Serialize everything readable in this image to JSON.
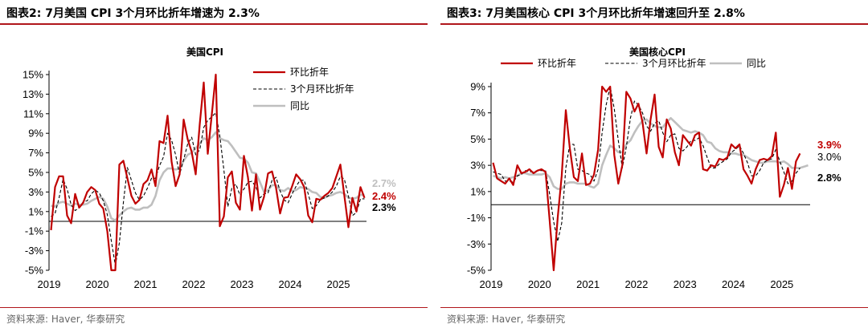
{
  "colors": {
    "red": "#c00000",
    "black": "#000000",
    "gray": "#bfbfbf",
    "rule": "#b0161b"
  },
  "panels": [
    {
      "fig_title": "图表2: 7月美国 CPI 3个月环比折年增速为 2.3%",
      "source": "资料来源: Haver, 华泰研究"
    },
    {
      "fig_title": "图表3: 7月美国核心 CPI 3个月环比折年增速回升至 2.8%",
      "source": "资料来源: Haver, 华泰研究"
    }
  ],
  "chart_data": [
    {
      "type": "line",
      "title": "美国CPI",
      "x_ticks": [
        "2019",
        "2020",
        "2021",
        "2022",
        "2023",
        "2024",
        "2025"
      ],
      "y_ticks": [
        "15%",
        "13%",
        "11%",
        "9%",
        "7%",
        "5%",
        "3%",
        "1%",
        "-1%",
        "-3%",
        "-5%"
      ],
      "ylim": [
        -5,
        15
      ],
      "x_start": "2019-01",
      "legend_position": "top-right",
      "series": [
        {
          "name": "环比折年",
          "color": "#c00000",
          "style": "solid",
          "values": [
            -0.9,
            3.5,
            4.6,
            4.6,
            0.6,
            -0.2,
            2.8,
            1.4,
            1.9,
            3.0,
            3.5,
            3.2,
            1.8,
            1.3,
            -1.0,
            -6.2,
            -6.3,
            5.8,
            6.2,
            4.4,
            2.6,
            1.8,
            2.2,
            3.8,
            4.2,
            5.3,
            3.6,
            8.2,
            8.0,
            10.8,
            6.1,
            3.6,
            4.8,
            10.4,
            8.4,
            7.1,
            4.8,
            9.9,
            14.2,
            6.9,
            10.9,
            15.6,
            -0.5,
            0.5,
            4.5,
            5.1,
            1.9,
            1.2,
            6.7,
            4.5,
            1.1,
            4.8,
            1.2,
            2.5,
            4.9,
            5.1,
            3.4,
            0.8,
            2.4,
            2.5,
            3.6,
            4.8,
            4.3,
            3.5,
            0.6,
            -0.1,
            2.3,
            2.2,
            2.6,
            2.9,
            3.4,
            4.6,
            5.8,
            2.6,
            -0.6,
            2.4,
            1.0,
            3.5,
            2.4
          ]
        },
        {
          "name": "3个月环比折年",
          "color": "#000000",
          "style": "dashed",
          "values": [
            0.5,
            0.8,
            2.4,
            4.3,
            3.3,
            1.7,
            1.1,
            1.4,
            2.0,
            2.1,
            2.8,
            3.2,
            2.9,
            2.1,
            0.7,
            -2.0,
            -4.5,
            -2.2,
            1.9,
            5.5,
            4.2,
            2.9,
            2.2,
            2.6,
            3.4,
            4.4,
            4.4,
            5.7,
            6.6,
            9.0,
            8.3,
            6.8,
            4.8,
            6.3,
            7.9,
            8.6,
            6.8,
            7.3,
            9.6,
            10.3,
            10.7,
            11.1,
            8.7,
            5.3,
            1.5,
            3.4,
            3.8,
            2.7,
            3.3,
            4.0,
            4.1,
            3.5,
            2.4,
            2.8,
            2.9,
            4.2,
            4.5,
            3.1,
            2.2,
            1.9,
            2.8,
            3.6,
            4.2,
            4.2,
            2.8,
            1.3,
            1.6,
            2.2,
            2.4,
            2.6,
            3.0,
            3.6,
            4.6,
            4.3,
            2.6,
            0.6,
            0.9,
            2.3,
            2.3
          ]
        },
        {
          "name": "同比",
          "color": "#bfbfbf",
          "style": "solid",
          "values": [
            1.6,
            1.5,
            1.9,
            2.0,
            1.8,
            1.6,
            1.8,
            1.7,
            1.7,
            1.8,
            2.1,
            2.3,
            2.5,
            2.3,
            1.5,
            0.3,
            0.1,
            0.6,
            1.0,
            1.3,
            1.4,
            1.2,
            1.2,
            1.4,
            1.4,
            1.7,
            2.6,
            4.2,
            5.0,
            5.4,
            5.4,
            5.3,
            5.4,
            6.2,
            6.8,
            7.0,
            7.5,
            7.9,
            8.5,
            8.3,
            8.6,
            9.1,
            8.5,
            8.3,
            8.2,
            7.7,
            7.1,
            6.5,
            6.4,
            6.0,
            5.0,
            4.9,
            4.0,
            3.0,
            3.2,
            3.7,
            3.7,
            3.2,
            3.1,
            3.4,
            3.1,
            3.2,
            3.5,
            3.4,
            3.3,
            3.0,
            2.9,
            2.5,
            2.4,
            2.6,
            2.7,
            2.9,
            3.0,
            2.8,
            2.4,
            2.3,
            2.4,
            2.7,
            2.7
          ]
        }
      ],
      "end_labels": [
        {
          "text": "2.7%",
          "color": "#bfbfbf",
          "bold": true
        },
        {
          "text": "2.4%",
          "color": "#c00000",
          "bold": true
        },
        {
          "text": "2.3%",
          "color": "#000000",
          "bold": true
        }
      ]
    },
    {
      "type": "line",
      "title": "美国核心CPI",
      "x_ticks": [
        "2019",
        "2020",
        "2021",
        "2022",
        "2023",
        "2024",
        "2025"
      ],
      "y_ticks": [
        "9%",
        "7%",
        "5%",
        "3%",
        "1%",
        "-1%",
        "-3%",
        "-5%"
      ],
      "ylim": [
        -5,
        10
      ],
      "x_start": "2019-01",
      "legend_position": "top",
      "series": [
        {
          "name": "环比折年",
          "color": "#c00000",
          "style": "solid",
          "values": [
            3.2,
            2.0,
            1.8,
            1.6,
            2.0,
            1.5,
            3.0,
            2.4,
            2.5,
            2.7,
            2.4,
            2.6,
            2.7,
            2.5,
            -1.2,
            -5.1,
            -1.0,
            2.2,
            7.2,
            4.3,
            2.1,
            1.8,
            3.9,
            1.5,
            1.6,
            2.3,
            4.2,
            9.9,
            8.6,
            9.4,
            3.8,
            1.6,
            3.0,
            8.6,
            8.1,
            7.1,
            7.7,
            6.3,
            3.9,
            6.5,
            8.4,
            4.4,
            3.6,
            6.5,
            5.8,
            4.0,
            3.0,
            5.3,
            4.9,
            4.5,
            5.3,
            5.5,
            2.7,
            2.6,
            3.0,
            2.9,
            3.5,
            3.4,
            3.6,
            4.6,
            4.3,
            4.6,
            2.7,
            2.2,
            1.6,
            2.7,
            3.4,
            3.5,
            3.4,
            3.7,
            5.5,
            0.6,
            1.5,
            2.8,
            1.2,
            3.3,
            3.9
          ]
        },
        {
          "name": "3个月环比折年",
          "color": "#000000",
          "style": "dashed",
          "values": [
            2.5,
            2.4,
            2.3,
            1.8,
            1.8,
            1.7,
            2.2,
            2.3,
            2.6,
            2.5,
            2.5,
            2.6,
            2.6,
            2.6,
            0.8,
            -1.3,
            -2.8,
            -1.4,
            2.8,
            4.6,
            4.6,
            2.7,
            2.6,
            2.4,
            2.3,
            1.8,
            2.7,
            5.5,
            7.6,
            9.3,
            7.3,
            4.9,
            2.8,
            4.4,
            6.6,
            7.9,
            7.6,
            7.0,
            6.0,
            5.6,
            6.2,
            6.4,
            5.5,
            4.8,
            5.3,
            5.4,
            4.3,
            4.1,
            4.4,
            4.9,
            4.9,
            5.1,
            4.5,
            3.6,
            2.8,
            2.8,
            3.1,
            3.3,
            3.5,
            4.0,
            4.2,
            4.5,
            3.9,
            3.2,
            2.2,
            2.2,
            2.6,
            3.2,
            3.4,
            3.5,
            4.2,
            3.3,
            2.5,
            1.6,
            1.8,
            2.4,
            2.8
          ]
        },
        {
          "name": "同比",
          "color": "#bfbfbf",
          "style": "solid",
          "values": [
            2.2,
            2.1,
            2.0,
            2.1,
            2.0,
            2.1,
            2.2,
            2.4,
            2.4,
            2.3,
            2.3,
            2.3,
            2.3,
            2.4,
            2.1,
            1.4,
            1.2,
            1.2,
            1.6,
            1.7,
            1.7,
            1.6,
            1.6,
            1.6,
            1.4,
            1.3,
            1.6,
            3.0,
            3.8,
            4.5,
            4.3,
            4.0,
            4.0,
            4.6,
            4.9,
            5.5,
            6.0,
            6.4,
            6.5,
            6.2,
            6.0,
            5.9,
            5.9,
            6.3,
            6.6,
            6.3,
            6.0,
            5.7,
            5.6,
            5.5,
            5.6,
            5.5,
            5.3,
            4.8,
            4.7,
            4.3,
            4.1,
            4.0,
            4.0,
            3.9,
            3.9,
            3.8,
            3.8,
            3.6,
            3.4,
            3.3,
            3.2,
            3.2,
            3.3,
            3.3,
            3.3,
            3.2,
            3.3,
            3.1,
            2.8,
            2.8,
            2.8,
            2.9,
            3.0
          ]
        }
      ],
      "end_labels": [
        {
          "text": "3.9%",
          "color": "#c00000",
          "bold": true
        },
        {
          "text": "3.0%",
          "color": "#000000",
          "bold": false
        },
        {
          "text": "2.8%",
          "color": "#000000",
          "bold": true
        }
      ]
    }
  ]
}
